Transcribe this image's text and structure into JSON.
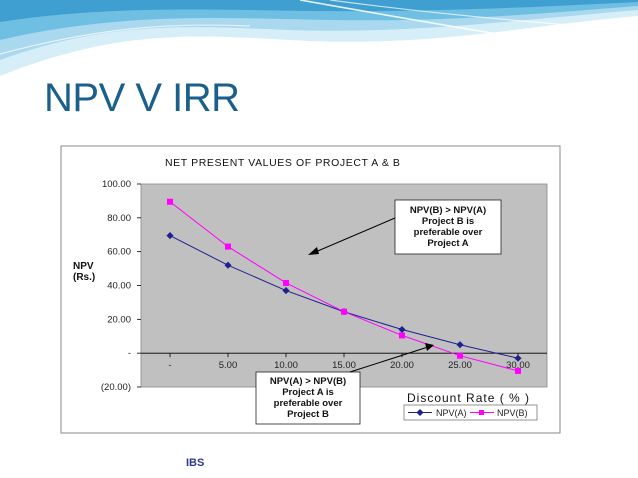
{
  "slide": {
    "title": "NPV V IRR",
    "footer": "IBS"
  },
  "colors": {
    "title": "#1b5f8c",
    "npv_a": "#1f1f8f",
    "npv_b": "#ff00ff",
    "plot_bg": "#c0c0c0"
  },
  "chart_data": {
    "type": "line",
    "title": "NET PRESENT VALUES OF PROJECT A & B",
    "xlabel": "Discount Rate ( % )",
    "ylabel_line1": "NPV",
    "ylabel_line2": "(Rs.)",
    "x": [
      0,
      5,
      10,
      15,
      20,
      25,
      30
    ],
    "x_tick_labels": [
      "-",
      "5.00",
      "10.00",
      "15.00",
      "20.00",
      "25.00",
      "30.00"
    ],
    "y_ticks": [
      100,
      80,
      60,
      40,
      20,
      0,
      -20
    ],
    "y_tick_labels": [
      "100.00",
      "80.00",
      "60.00",
      "40.00",
      "20.00",
      "-",
      "(20.00)"
    ],
    "xlim": [
      -2.5,
      32.5
    ],
    "ylim": [
      -20,
      100
    ],
    "grid": false,
    "legend_position": "bottom-right",
    "series": [
      {
        "name": "NPV(A)",
        "color": "#1f1f8f",
        "marker": "diamond",
        "values": [
          69.5,
          52,
          37,
          24.5,
          14,
          5,
          -3
        ]
      },
      {
        "name": "NPV(B)",
        "color": "#ff00ff",
        "marker": "square",
        "values": [
          89.5,
          63,
          41.5,
          24.5,
          10.5,
          -1.5,
          -10.5
        ]
      }
    ],
    "annotations": [
      {
        "id": "upper",
        "lines": [
          "NPV(B) > NPV(A)",
          "Project B is",
          "preferable over",
          "Project A"
        ]
      },
      {
        "id": "lower",
        "lines": [
          "NPV(A) > NPV(B)",
          "Project A is",
          "preferable over",
          "Project B"
        ]
      }
    ]
  }
}
